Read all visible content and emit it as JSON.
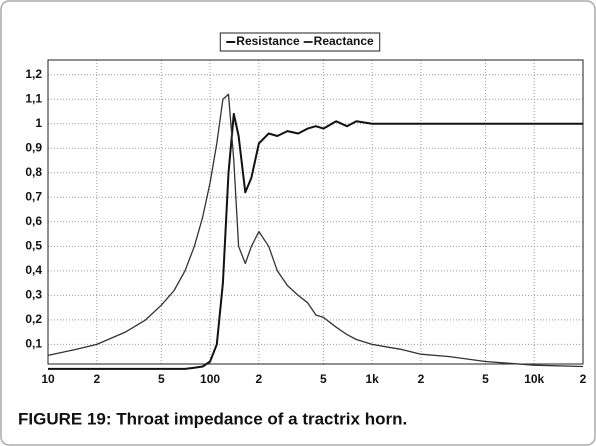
{
  "chart_data": {
    "type": "line",
    "caption": "FIGURE 19: Throat impedance of a tractrix horn.",
    "x": [
      10,
      15,
      20,
      30,
      40,
      50,
      60,
      70,
      80,
      90,
      100,
      110,
      120,
      130,
      140,
      150,
      165,
      180,
      200,
      230,
      260,
      300,
      350,
      400,
      450,
      500,
      600,
      700,
      800,
      1000,
      1500,
      2000,
      3000,
      5000,
      10000,
      20000
    ],
    "series": [
      {
        "name": "Resistance",
        "color": "#111111",
        "values": [
          0,
          0,
          0,
          0,
          0,
          0,
          0,
          0,
          0.005,
          0.01,
          0.03,
          0.1,
          0.35,
          0.8,
          1.04,
          0.95,
          0.72,
          0.78,
          0.92,
          0.96,
          0.95,
          0.97,
          0.96,
          0.98,
          0.99,
          0.98,
          1.01,
          0.99,
          1.01,
          1.0,
          1.0,
          1.0,
          1.0,
          1.0,
          1.0,
          1.0
        ]
      },
      {
        "name": "Reactance",
        "color": "#333333",
        "values": [
          0.055,
          0.08,
          0.1,
          0.15,
          0.2,
          0.26,
          0.32,
          0.4,
          0.5,
          0.62,
          0.76,
          0.92,
          1.1,
          1.12,
          0.85,
          0.5,
          0.43,
          0.5,
          0.56,
          0.5,
          0.4,
          0.34,
          0.3,
          0.27,
          0.22,
          0.21,
          0.17,
          0.14,
          0.12,
          0.1,
          0.08,
          0.06,
          0.05,
          0.03,
          0.015,
          0.01
        ]
      }
    ],
    "xlog": true,
    "xlim": [
      10,
      20000
    ],
    "xticks": [
      10,
      {
        "value": 20,
        "label": "2"
      },
      {
        "value": 50,
        "label": "5"
      },
      100,
      {
        "value": 200,
        "label": "2"
      },
      {
        "value": 500,
        "label": "5"
      },
      {
        "value": 1000,
        "label": "1k"
      },
      {
        "value": 2000,
        "label": "2"
      },
      {
        "value": 5000,
        "label": "5"
      },
      {
        "value": 10000,
        "label": "10k"
      },
      {
        "value": 20000,
        "label": "2"
      }
    ],
    "ylim": [
      0.02,
      1.26
    ],
    "yticks": [
      {
        "value": 0.1,
        "label": "0,1"
      },
      {
        "value": 0.2,
        "label": "0,2"
      },
      {
        "value": 0.3,
        "label": "0,3"
      },
      {
        "value": 0.4,
        "label": "0,4"
      },
      {
        "value": 0.5,
        "label": "0,5"
      },
      {
        "value": 0.6,
        "label": "0,6"
      },
      {
        "value": 0.7,
        "label": "0,7"
      },
      {
        "value": 0.8,
        "label": "0,8"
      },
      {
        "value": 0.9,
        "label": "0,9"
      },
      {
        "value": 1,
        "label": "1"
      },
      {
        "value": 1.1,
        "label": "1,1"
      },
      {
        "value": 1.2,
        "label": "1,2"
      }
    ],
    "grid": true
  }
}
